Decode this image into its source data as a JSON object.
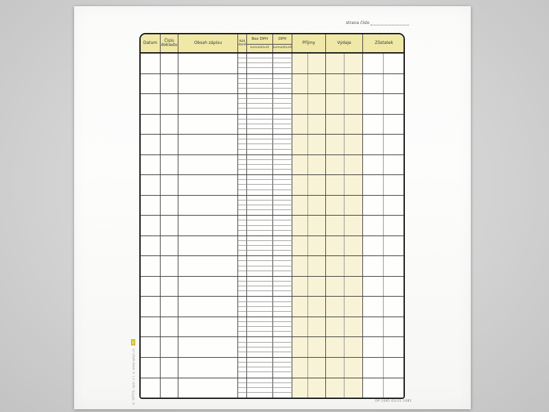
{
  "meta": {
    "strana_label": "strana číslo"
  },
  "header": {
    "datum": "Datum",
    "cislo_dokladu_line1": "Číslo",
    "cislo_dokladu_line2": "dokladu",
    "obsah_zapisu": "Obsah zápisu",
    "kod_dane_line1": "Kód",
    "kod_dane_line2": "daně",
    "bez_dph": "Bez DPH",
    "bez_dph_sub": "kumulativně",
    "dph": "DPH",
    "dph_sub": "kumulativně",
    "prijmy": "Příjmy",
    "vydaje": "Výdaje",
    "zustatek": "Zůstatek"
  },
  "grid": {
    "rows": 17,
    "subrows_per_row": 4,
    "cells_empty": true
  },
  "imprints": {
    "left_vertical": "© OPTYS, spol. s r. o.  www.optys.cz",
    "bottom_right": "OP 1085  05/15  1085"
  },
  "colors": {
    "header_yellow": "#f0e8a6",
    "cell_yellow": "#f8f3d6",
    "grid_line_dark": "#3f3f3f",
    "grid_line_light": "#9a9a9a",
    "table_border": "#1b1b1b",
    "paper": "#fdfdfc",
    "backdrop": "#d3d3d3",
    "logo_mark_yellow": "#e6d34a"
  }
}
